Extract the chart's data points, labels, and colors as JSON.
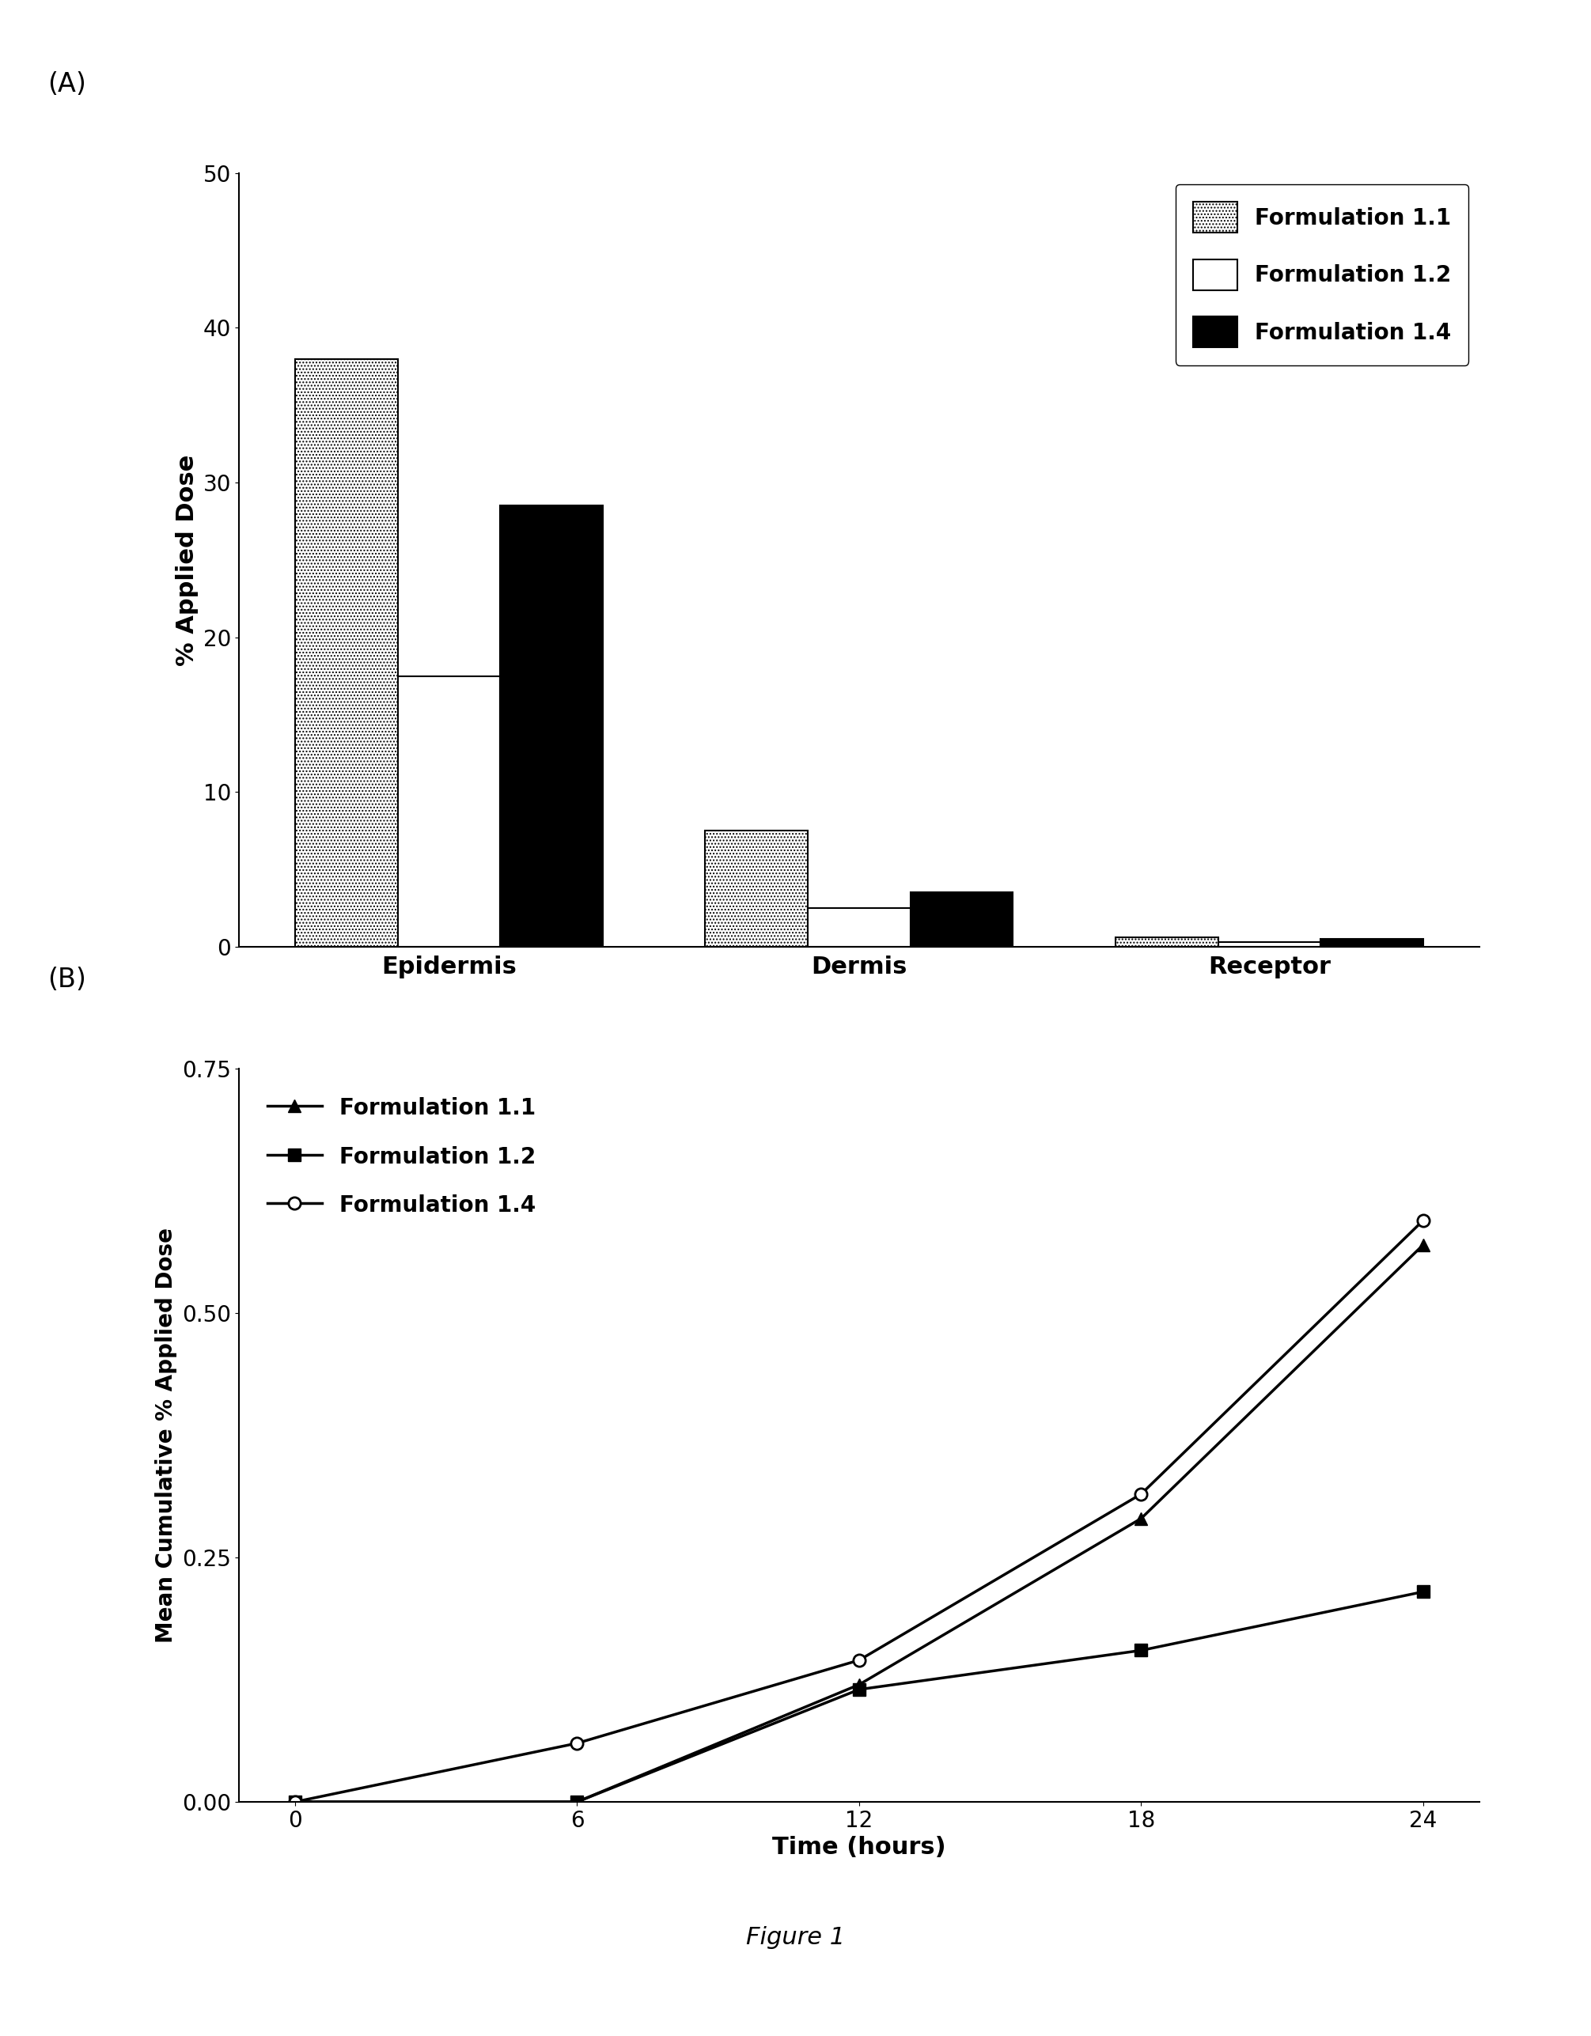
{
  "bar_categories": [
    "Epidermis",
    "Dermis",
    "Receptor"
  ],
  "bar_f11": [
    38.0,
    7.5,
    0.6
  ],
  "bar_f12": [
    17.5,
    2.5,
    0.3
  ],
  "bar_f14": [
    28.5,
    3.5,
    0.5
  ],
  "bar_ylabel": "% Applied Dose",
  "bar_ylim": [
    0,
    50
  ],
  "bar_yticks": [
    0,
    10,
    20,
    30,
    40,
    50
  ],
  "bar_legend": [
    "Formulation 1.1",
    "Formulation 1.2",
    "Formulation 1.4"
  ],
  "line_time": [
    0,
    6,
    12,
    18,
    24
  ],
  "line_f11": [
    0.0,
    0.0,
    0.12,
    0.29,
    0.57
  ],
  "line_f12": [
    0.0,
    0.0,
    0.115,
    0.155,
    0.215
  ],
  "line_f14": [
    0.0,
    0.06,
    0.145,
    0.315,
    0.595
  ],
  "line_ylabel": "Mean Cumulative % Applied Dose",
  "line_xlabel": "Time (hours)",
  "line_ylim": [
    0,
    0.75
  ],
  "line_yticks": [
    0.0,
    0.25,
    0.5,
    0.75
  ],
  "line_xticks": [
    0,
    6,
    12,
    18,
    24
  ],
  "line_legend": [
    "Formulation 1.1",
    "Formulation 1.2",
    "Formulation 1.4"
  ],
  "figure_caption": "Figure 1",
  "label_A": "(A)",
  "label_B": "(B)",
  "background_color": "#ffffff",
  "font_size_axis_label": 22,
  "font_size_tick": 20,
  "font_size_legend": 20,
  "font_size_caption": 22,
  "font_size_panel_label": 24
}
